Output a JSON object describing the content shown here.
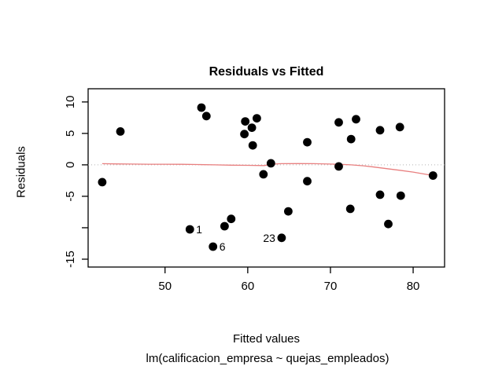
{
  "chart_data": {
    "type": "scatter",
    "title": "Residuals vs Fitted",
    "xlabel": "Fitted values",
    "sublabel": "lm(calificacion_empresa ~ quejas_empleados)",
    "ylabel": "Residuals",
    "xlim": [
      40.7,
      83.8
    ],
    "ylim": [
      -16.25,
      12.1
    ],
    "x_ticks": [
      {
        "v": 50,
        "label": "50"
      },
      {
        "v": 60,
        "label": "60"
      },
      {
        "v": 70,
        "label": "70"
      },
      {
        "v": 80,
        "label": "80"
      }
    ],
    "y_ticks": [
      {
        "v": 10,
        "label": "10"
      },
      {
        "v": 5,
        "label": "5"
      },
      {
        "v": 0,
        "label": "0"
      },
      {
        "v": -5,
        "label": "-5"
      },
      {
        "v": -10,
        "label": ""
      },
      {
        "v": -15,
        "label": "-15"
      }
    ],
    "grid": false,
    "points": [
      [
        42.4,
        -2.75
      ],
      [
        44.6,
        5.3
      ],
      [
        53.0,
        -10.25
      ],
      [
        54.4,
        9.1
      ],
      [
        55.0,
        7.75
      ],
      [
        55.8,
        -13.0
      ],
      [
        57.2,
        -9.75
      ],
      [
        58.0,
        -8.6
      ],
      [
        59.6,
        4.9
      ],
      [
        59.7,
        6.9
      ],
      [
        60.5,
        5.9
      ],
      [
        60.6,
        3.1
      ],
      [
        61.1,
        7.4
      ],
      [
        61.9,
        -1.5
      ],
      [
        62.8,
        0.25
      ],
      [
        64.1,
        -11.6
      ],
      [
        64.9,
        -7.4
      ],
      [
        67.2,
        3.6
      ],
      [
        67.2,
        -2.6
      ],
      [
        71.0,
        6.75
      ],
      [
        71.0,
        -0.25
      ],
      [
        72.4,
        -7.0
      ],
      [
        72.5,
        4.1
      ],
      [
        73.1,
        7.25
      ],
      [
        76.0,
        5.5
      ],
      [
        76.0,
        -4.75
      ],
      [
        77.0,
        -9.4
      ],
      [
        78.4,
        6.0
      ],
      [
        78.5,
        -4.9
      ],
      [
        82.4,
        -1.7
      ]
    ],
    "labeled_points": [
      {
        "x": 53.0,
        "y": -10.25,
        "label": "1",
        "side": "right"
      },
      {
        "x": 55.8,
        "y": -13.0,
        "label": "6",
        "side": "right"
      },
      {
        "x": 64.1,
        "y": -11.6,
        "label": "23",
        "side": "left"
      }
    ],
    "zero_line": {
      "y": 0,
      "color": "#b3b3b3",
      "style": "dotted"
    },
    "smoother": {
      "color": "#e87f7f",
      "points": [
        [
          42.4,
          0.18
        ],
        [
          44,
          0.15
        ],
        [
          46,
          0.12
        ],
        [
          48,
          0.1
        ],
        [
          50,
          0.1
        ],
        [
          52,
          0.08
        ],
        [
          54,
          0.05
        ],
        [
          56,
          0.0
        ],
        [
          58,
          -0.05
        ],
        [
          60,
          -0.08
        ],
        [
          62,
          -0.12
        ],
        [
          62.8,
          0.1
        ],
        [
          64,
          0.18
        ],
        [
          66,
          0.2
        ],
        [
          68,
          0.18
        ],
        [
          70,
          0.12
        ],
        [
          71,
          0.08
        ],
        [
          72.5,
          0.0
        ],
        [
          74,
          -0.15
        ],
        [
          75,
          -0.3
        ],
        [
          76.5,
          -0.55
        ],
        [
          78,
          -0.8
        ],
        [
          80,
          -1.15
        ],
        [
          82.4,
          -1.7
        ]
      ]
    },
    "colors": {
      "points": "#000000",
      "axis": "#000000",
      "text": "#000000"
    }
  }
}
